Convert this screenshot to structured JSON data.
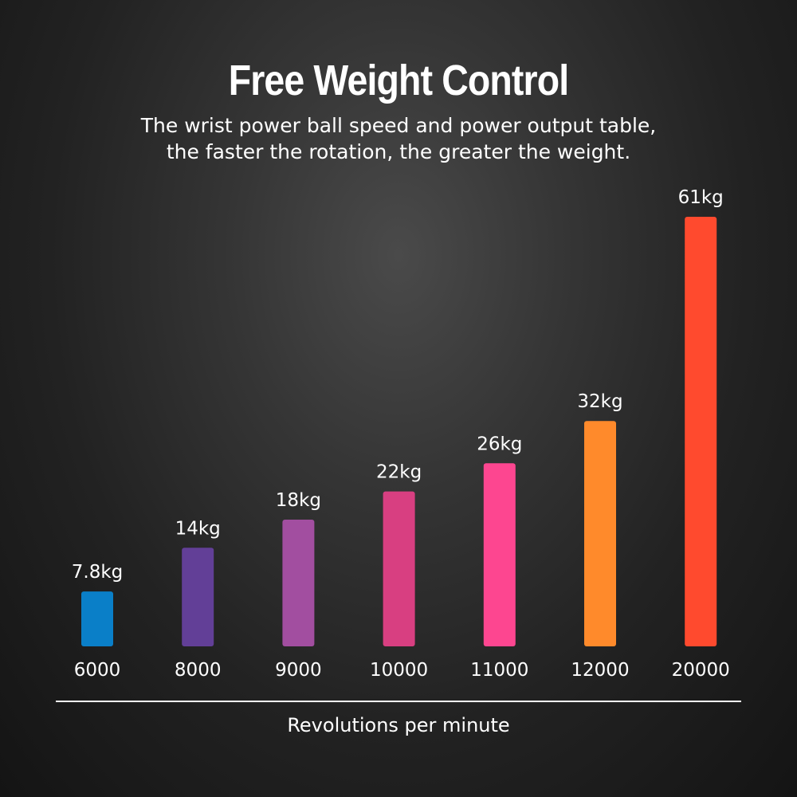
{
  "chart_data": {
    "type": "bar",
    "title": "Free Weight Control",
    "subtitle": [
      "The wrist power ball speed and power output table,",
      "the faster the rotation, the greater the weight."
    ],
    "xlabel": "Revolutions per minute",
    "ylabel": "",
    "categories": [
      "6000",
      "8000",
      "9000",
      "10000",
      "11000",
      "12000",
      "20000"
    ],
    "values": [
      7.8,
      14,
      18,
      22,
      26,
      32,
      61
    ],
    "value_labels": [
      "7.8kg",
      "14kg",
      "18kg",
      "22kg",
      "26kg",
      "32kg",
      "61kg"
    ],
    "unit": "kg",
    "bar_colors": [
      "#0a7fc8",
      "#623f97",
      "#a24ea0",
      "#d83f81",
      "#fd4690",
      "#ff8a2b",
      "#ff4a2e"
    ],
    "grid": false,
    "legend": "none"
  }
}
